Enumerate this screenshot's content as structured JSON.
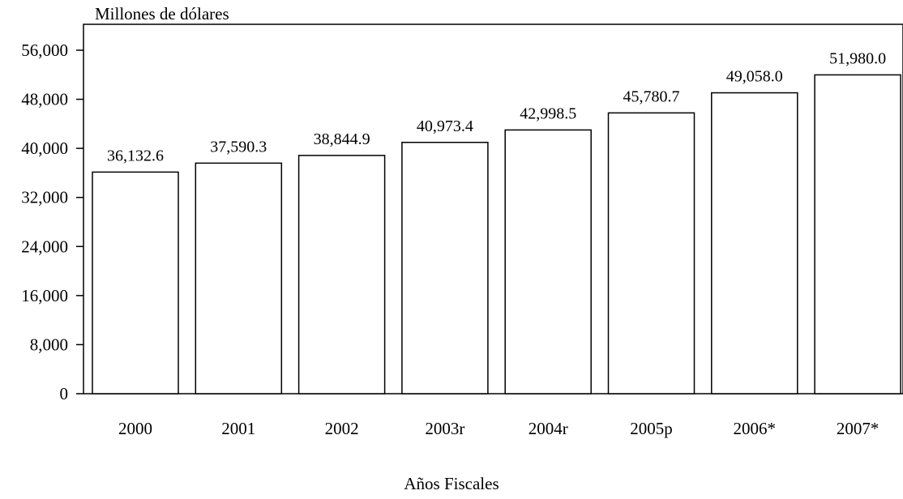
{
  "chart_data": {
    "type": "bar",
    "ylabel": "Millones de dólares",
    "xlabel": "Años Fiscales",
    "categories": [
      "2000",
      "2001",
      "2002",
      "2003r",
      "2004r",
      "2005p",
      "2006*",
      "2007*"
    ],
    "values": [
      36132.6,
      37590.3,
      38844.9,
      40973.4,
      42998.5,
      45780.7,
      49058.0,
      51980.0
    ],
    "data_labels": [
      "36,132.6",
      "37,590.3",
      "38,844.9",
      "40,973.4",
      "42,998.5",
      "45,780.7",
      "49,058.0",
      "51,980.0"
    ],
    "yticks": [
      0,
      8000,
      16000,
      24000,
      32000,
      40000,
      48000,
      56000
    ],
    "ytick_labels": [
      "0",
      "8,000",
      "16,000",
      "24,000",
      "32,000",
      "40,000",
      "48,000",
      "56,000"
    ],
    "ylim": [
      0,
      60000
    ],
    "grid": false,
    "legend": "none",
    "colors": {
      "bar_fill": "#ffffff",
      "bar_stroke": "#000000",
      "axis": "#000000"
    }
  }
}
